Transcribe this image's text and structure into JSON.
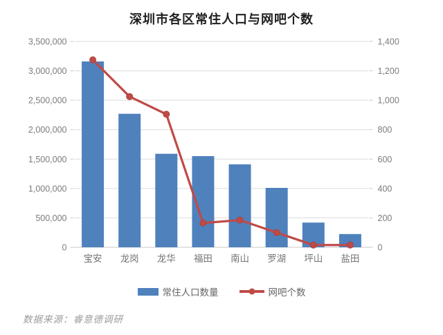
{
  "title": "深圳市各区常住人口与网吧个数",
  "source_note": "数据来源：睿意德调研",
  "colors": {
    "bar": "#4f81bd",
    "line": "#bf4b48",
    "marker": "#bf4b48",
    "marker_stroke": "#a84340",
    "grid": "#dcdcdc",
    "baseline": "#c9c9c9",
    "tick": "#c9c9c9",
    "axis_text": "#7b7b7b",
    "category_text": "#757575",
    "title_text": "#1f1f1f",
    "legend_text": "#666666",
    "source_text": "#9b9b9b",
    "background": "#ffffff"
  },
  "legend": [
    {
      "label": "常住人口数量",
      "marker": "bar"
    },
    {
      "label": "网吧个数",
      "marker": "line"
    }
  ],
  "chart_data": {
    "type": "bar+line dual-axis combo",
    "title": "深圳市各区常住人口与网吧个数",
    "categories": [
      "宝安",
      "龙岗",
      "龙华",
      "福田",
      "南山",
      "罗湖",
      "坪山",
      "盐田"
    ],
    "series": [
      {
        "name": "常住人口数量",
        "type": "bar",
        "axis": "left",
        "values": [
          3160000,
          2270000,
          1590000,
          1550000,
          1410000,
          1010000,
          420000,
          225000
        ]
      },
      {
        "name": "网吧个数",
        "type": "line",
        "axis": "right",
        "values": [
          1275,
          1025,
          905,
          165,
          185,
          100,
          15,
          15
        ]
      }
    ],
    "left_axis": {
      "min": 0,
      "max": 3500000,
      "step": 500000,
      "tick_labels": [
        "0",
        "500,000",
        "1,000,000",
        "1,500,000",
        "2,000,000",
        "2,500,000",
        "3,000,000",
        "3,500,000"
      ]
    },
    "right_axis": {
      "min": 0,
      "max": 1400,
      "step": 200,
      "tick_labels": [
        "0",
        "200",
        "400",
        "600",
        "800",
        "1000",
        "1200",
        "1400"
      ]
    },
    "grid": true,
    "legend_position": "bottom"
  }
}
